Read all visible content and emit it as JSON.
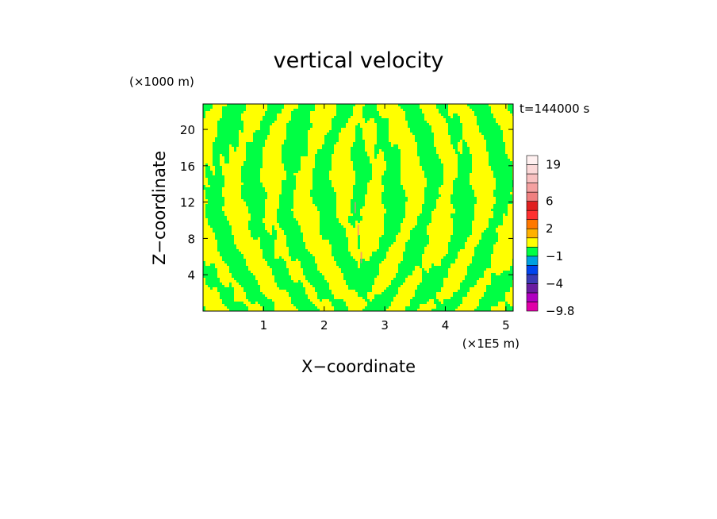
{
  "chart_data": {
    "type": "heatmap",
    "title": "vertical velocity",
    "xlabel": "X−coordinate",
    "ylabel": "Z−coordinate",
    "x_unit": "(×1E5 m)",
    "y_unit": "(×1000 m)",
    "time_label": "t=144000 s",
    "xlim": [
      0,
      5.12
    ],
    "ylim": [
      0,
      22.8
    ],
    "x_ticks": [
      {
        "value": 1,
        "label": "1"
      },
      {
        "value": 2,
        "label": "2"
      },
      {
        "value": 3,
        "label": "3"
      },
      {
        "value": 4,
        "label": "4"
      },
      {
        "value": 5,
        "label": "5"
      }
    ],
    "y_ticks": [
      {
        "value": 4,
        "label": "4"
      },
      {
        "value": 8,
        "label": "8"
      },
      {
        "value": 12,
        "label": "12"
      },
      {
        "value": 16,
        "label": "16"
      },
      {
        "value": 20,
        "label": "20"
      }
    ],
    "colorbar": {
      "levels": [
        -9.8,
        -8,
        -6,
        -4,
        -3,
        -2,
        -1,
        0,
        1,
        2,
        3,
        4,
        6,
        9,
        12,
        15,
        19,
        23
      ],
      "colors": [
        "#e000a8",
        "#b000c0",
        "#6a1ca0",
        "#3a3ab4",
        "#0044ee",
        "#00a0e0",
        "#00ff44",
        "#ffff00",
        "#ffb000",
        "#ff7800",
        "#ff3030",
        "#e02020",
        "#f08080",
        "#f4a0a0",
        "#f8c0c0",
        "#fbd8d8",
        "#fff0f0"
      ],
      "labels": [
        {
          "value": 19,
          "label": "19"
        },
        {
          "value": 6,
          "label": "6"
        },
        {
          "value": 2,
          "label": "2"
        },
        {
          "value": -1,
          "label": "−1"
        },
        {
          "value": -4,
          "label": "−4"
        },
        {
          "value": -9.8,
          "label": "−9.8"
        }
      ]
    },
    "field_colors": {
      "positive": "#ffff00",
      "negative": "#00ff44",
      "accent": "#f08080"
    }
  }
}
